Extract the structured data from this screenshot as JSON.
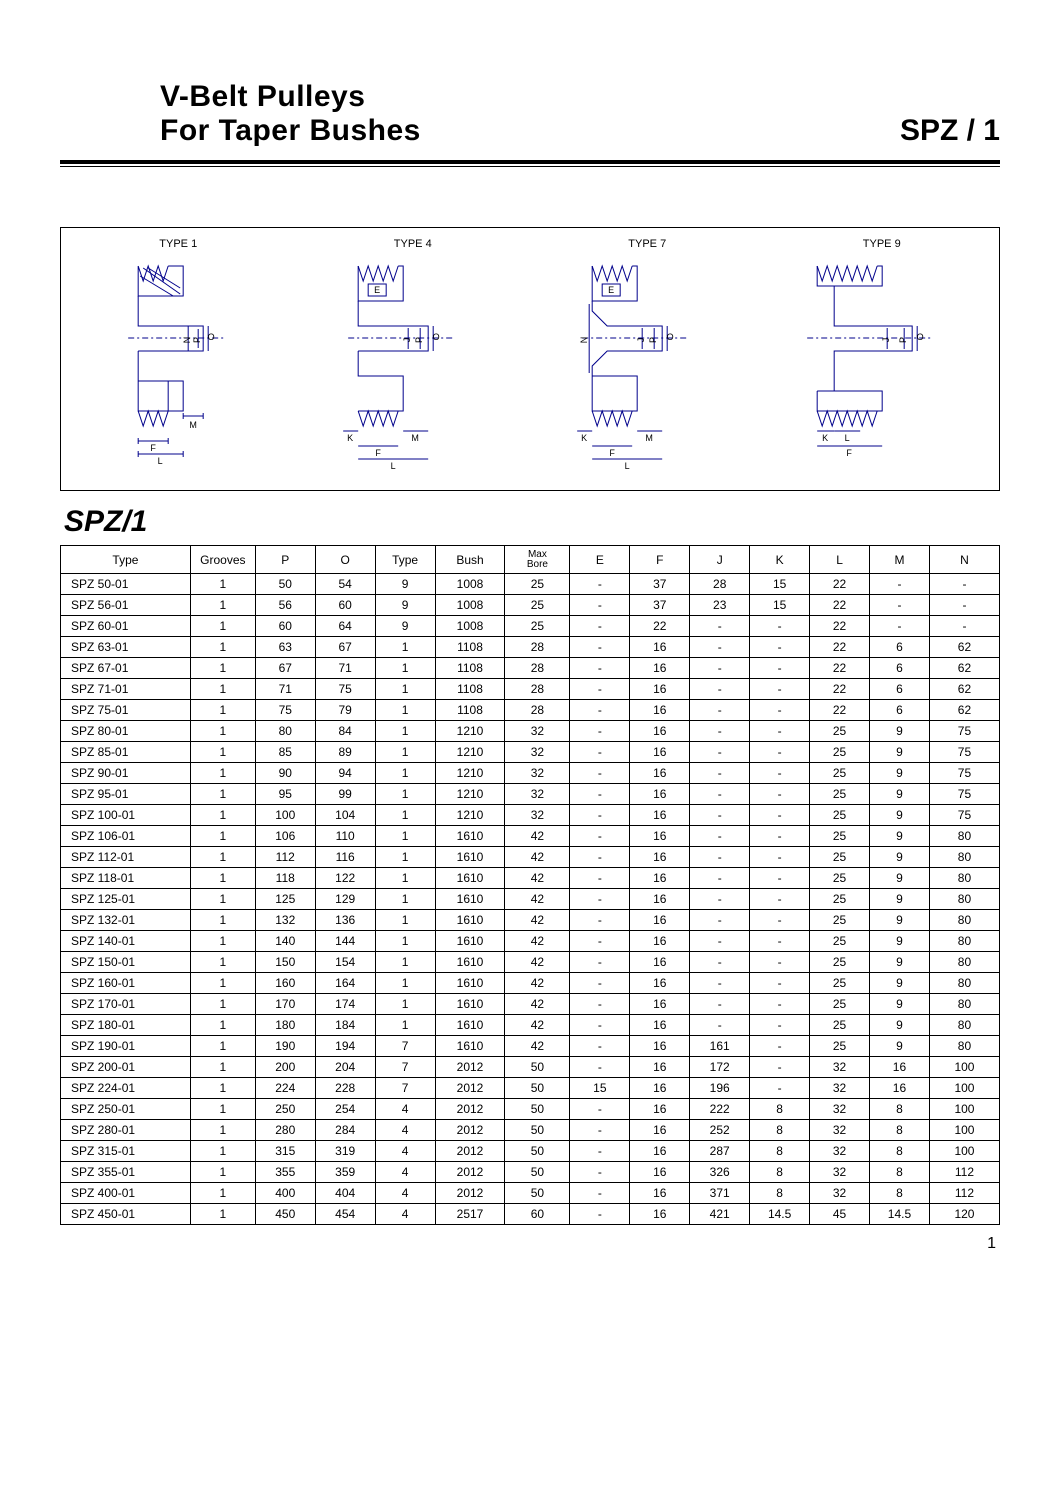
{
  "header": {
    "title_line1": "V-Belt  Pulleys",
    "title_line2": "For Taper Bushes",
    "right_label": "SPZ / 1"
  },
  "diagrams": {
    "labels": [
      "TYPE 1",
      "TYPE 4",
      "TYPE 7",
      "TYPE 9"
    ],
    "stroke": "#00008b",
    "stroke_width": 1
  },
  "section_title": "SPZ/1",
  "table": {
    "columns": [
      "Type",
      "Grooves",
      "P",
      "O",
      "Type",
      "Bush",
      "Max Bore",
      "E",
      "F",
      "J",
      "K",
      "L",
      "M",
      "N"
    ],
    "col_widths_pct": [
      13,
      6.5,
      6,
      6,
      6,
      7,
      6.5,
      6,
      6,
      6,
      6,
      6,
      6,
      7
    ],
    "rows": [
      [
        "SPZ  50-01",
        "1",
        "50",
        "54",
        "9",
        "1008",
        "25",
        "-",
        "37",
        "28",
        "15",
        "22",
        "-",
        "-"
      ],
      [
        "SPZ  56-01",
        "1",
        "56",
        "60",
        "9",
        "1008",
        "25",
        "-",
        "37",
        "23",
        "15",
        "22",
        "-",
        "-"
      ],
      [
        "SPZ  60-01",
        "1",
        "60",
        "64",
        "9",
        "1008",
        "25",
        "-",
        "22",
        "-",
        "-",
        "22",
        "-",
        "-"
      ],
      [
        "SPZ  63-01",
        "1",
        "63",
        "67",
        "1",
        "1108",
        "28",
        "-",
        "16",
        "-",
        "-",
        "22",
        "6",
        "62"
      ],
      [
        "SPZ  67-01",
        "1",
        "67",
        "71",
        "1",
        "1108",
        "28",
        "-",
        "16",
        "-",
        "-",
        "22",
        "6",
        "62"
      ],
      [
        "SPZ  71-01",
        "1",
        "71",
        "75",
        "1",
        "1108",
        "28",
        "-",
        "16",
        "-",
        "-",
        "22",
        "6",
        "62"
      ],
      [
        "SPZ  75-01",
        "1",
        "75",
        "79",
        "1",
        "1108",
        "28",
        "-",
        "16",
        "-",
        "-",
        "22",
        "6",
        "62"
      ],
      [
        "SPZ  80-01",
        "1",
        "80",
        "84",
        "1",
        "1210",
        "32",
        "-",
        "16",
        "-",
        "-",
        "25",
        "9",
        "75"
      ],
      [
        "SPZ  85-01",
        "1",
        "85",
        "89",
        "1",
        "1210",
        "32",
        "-",
        "16",
        "-",
        "-",
        "25",
        "9",
        "75"
      ],
      [
        "SPZ  90-01",
        "1",
        "90",
        "94",
        "1",
        "1210",
        "32",
        "-",
        "16",
        "-",
        "-",
        "25",
        "9",
        "75"
      ],
      [
        "SPZ  95-01",
        "1",
        "95",
        "99",
        "1",
        "1210",
        "32",
        "-",
        "16",
        "-",
        "-",
        "25",
        "9",
        "75"
      ],
      [
        "SPZ  100-01",
        "1",
        "100",
        "104",
        "1",
        "1210",
        "32",
        "-",
        "16",
        "-",
        "-",
        "25",
        "9",
        "75"
      ],
      [
        "SPZ  106-01",
        "1",
        "106",
        "110",
        "1",
        "1610",
        "42",
        "-",
        "16",
        "-",
        "-",
        "25",
        "9",
        "80"
      ],
      [
        "SPZ  112-01",
        "1",
        "112",
        "116",
        "1",
        "1610",
        "42",
        "-",
        "16",
        "-",
        "-",
        "25",
        "9",
        "80"
      ],
      [
        "SPZ  118-01",
        "1",
        "118",
        "122",
        "1",
        "1610",
        "42",
        "-",
        "16",
        "-",
        "-",
        "25",
        "9",
        "80"
      ],
      [
        "SPZ  125-01",
        "1",
        "125",
        "129",
        "1",
        "1610",
        "42",
        "-",
        "16",
        "-",
        "-",
        "25",
        "9",
        "80"
      ],
      [
        "SPZ  132-01",
        "1",
        "132",
        "136",
        "1",
        "1610",
        "42",
        "-",
        "16",
        "-",
        "-",
        "25",
        "9",
        "80"
      ],
      [
        "SPZ  140-01",
        "1",
        "140",
        "144",
        "1",
        "1610",
        "42",
        "-",
        "16",
        "-",
        "-",
        "25",
        "9",
        "80"
      ],
      [
        "SPZ  150-01",
        "1",
        "150",
        "154",
        "1",
        "1610",
        "42",
        "-",
        "16",
        "-",
        "-",
        "25",
        "9",
        "80"
      ],
      [
        "SPZ  160-01",
        "1",
        "160",
        "164",
        "1",
        "1610",
        "42",
        "-",
        "16",
        "-",
        "-",
        "25",
        "9",
        "80"
      ],
      [
        "SPZ  170-01",
        "1",
        "170",
        "174",
        "1",
        "1610",
        "42",
        "-",
        "16",
        "-",
        "-",
        "25",
        "9",
        "80"
      ],
      [
        "SPZ  180-01",
        "1",
        "180",
        "184",
        "1",
        "1610",
        "42",
        "-",
        "16",
        "-",
        "-",
        "25",
        "9",
        "80"
      ],
      [
        "SPZ  190-01",
        "1",
        "190",
        "194",
        "7",
        "1610",
        "42",
        "-",
        "16",
        "161",
        "-",
        "25",
        "9",
        "80"
      ],
      [
        "SPZ  200-01",
        "1",
        "200",
        "204",
        "7",
        "2012",
        "50",
        "-",
        "16",
        "172",
        "-",
        "32",
        "16",
        "100"
      ],
      [
        "SPZ  224-01",
        "1",
        "224",
        "228",
        "7",
        "2012",
        "50",
        "15",
        "16",
        "196",
        "-",
        "32",
        "16",
        "100"
      ],
      [
        "SPZ  250-01",
        "1",
        "250",
        "254",
        "4",
        "2012",
        "50",
        "-",
        "16",
        "222",
        "8",
        "32",
        "8",
        "100"
      ],
      [
        "SPZ  280-01",
        "1",
        "280",
        "284",
        "4",
        "2012",
        "50",
        "-",
        "16",
        "252",
        "8",
        "32",
        "8",
        "100"
      ],
      [
        "SPZ  315-01",
        "1",
        "315",
        "319",
        "4",
        "2012",
        "50",
        "-",
        "16",
        "287",
        "8",
        "32",
        "8",
        "100"
      ],
      [
        "SPZ  355-01",
        "1",
        "355",
        "359",
        "4",
        "2012",
        "50",
        "-",
        "16",
        "326",
        "8",
        "32",
        "8",
        "112"
      ],
      [
        "SPZ  400-01",
        "1",
        "400",
        "404",
        "4",
        "2012",
        "50",
        "-",
        "16",
        "371",
        "8",
        "32",
        "8",
        "112"
      ],
      [
        "SPZ  450-01",
        "1",
        "450",
        "454",
        "4",
        "2517",
        "60",
        "-",
        "16",
        "421",
        "14.5",
        "45",
        "14.5",
        "120"
      ]
    ]
  },
  "page_number": "1"
}
